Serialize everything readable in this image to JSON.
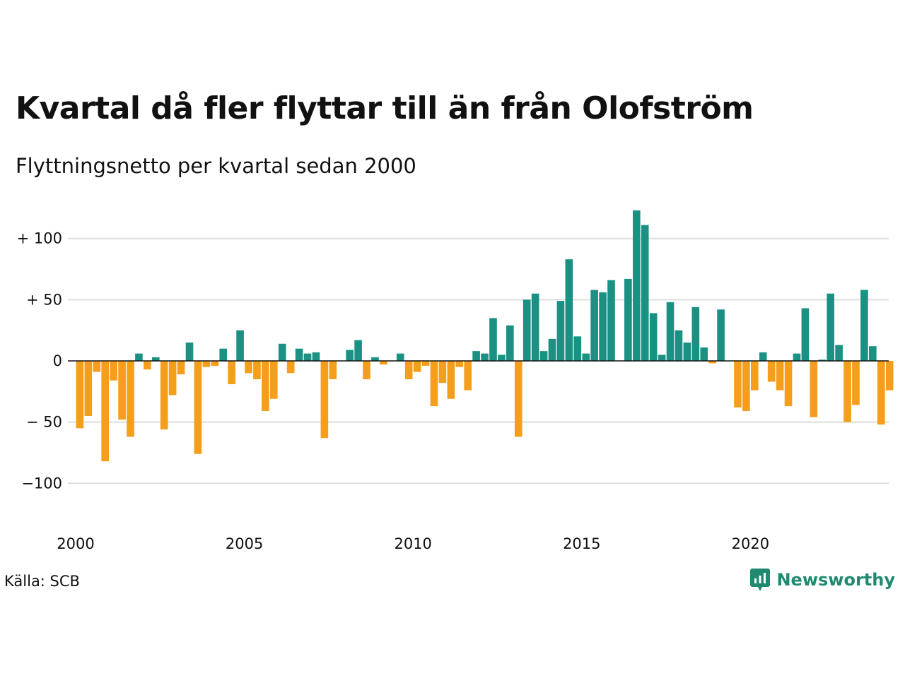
{
  "header": {
    "title": "Kvartal då fler flyttar till än från Olofström",
    "subtitle": "Flyttningsnetto per kvartal sedan 2000"
  },
  "footer": {
    "source": "Källa: SCB",
    "brand": "Newsworthy"
  },
  "colors": {
    "positive": "#1a9183",
    "negative": "#f59e1b",
    "grid": "#dddddd",
    "brand": "#1f8a70"
  },
  "chart_data": {
    "type": "bar",
    "title": "Kvartal då fler flyttar till än från Olofström",
    "subtitle": "Flyttningsnetto per kvartal sedan 2000",
    "xlabel": "",
    "ylabel": "",
    "ylim": [
      -135,
      135
    ],
    "y_ticks": [
      {
        "value": 100,
        "label": "+ 100"
      },
      {
        "value": 50,
        "label": "+  50"
      },
      {
        "value": 0,
        "label": "0"
      },
      {
        "value": -50,
        "label": "− 50"
      },
      {
        "value": -100,
        "label": "−100"
      }
    ],
    "x_ticks": [
      "2000",
      "2005",
      "2010",
      "2015",
      "2020"
    ],
    "x_tick_years": [
      2000,
      2005,
      2010,
      2015,
      2020
    ],
    "start_year": 2000,
    "end_year": 2023,
    "grid": true,
    "values": [
      -55,
      -45,
      -9,
      -82,
      -16,
      -48,
      -62,
      6,
      -7,
      3,
      -56,
      -28,
      -11,
      15,
      -76,
      -5,
      -4,
      10,
      -19,
      25,
      -10,
      -15,
      -41,
      -31,
      14,
      -10,
      10,
      6,
      7,
      -63,
      -15,
      0,
      9,
      17,
      -15,
      3,
      -3,
      0,
      6,
      -15,
      -9,
      -4,
      -37,
      -18,
      -31,
      -5,
      -24,
      8,
      6,
      35,
      5,
      29,
      -62,
      50,
      55,
      8,
      18,
      49,
      83,
      20,
      6,
      58,
      56,
      66,
      0,
      67,
      123,
      111,
      39,
      5,
      48,
      25,
      15,
      44,
      11,
      -2,
      42,
      0,
      -38,
      -41,
      -24,
      7,
      -17,
      -24,
      -37,
      6,
      43,
      -46,
      1,
      55,
      13,
      -50,
      -36,
      58,
      12,
      -52
    ],
    "extra_last": -24
  }
}
